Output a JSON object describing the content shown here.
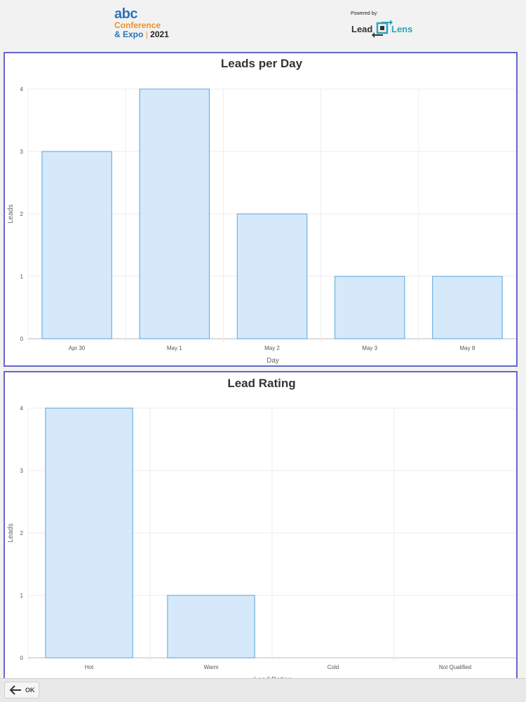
{
  "header": {
    "event_logo": {
      "abc": "abc",
      "line1": "Conference",
      "line2a": "& Expo",
      "line2sep": "|",
      "year": "2021"
    },
    "powered_by": "Powered by:",
    "brand": {
      "lead": "Lead",
      "lens": "Lens"
    }
  },
  "charts": [
    {
      "chart_data": {
        "type": "bar",
        "title": "Leads per Day",
        "xlabel": "Day",
        "ylabel": "Leads",
        "categories": [
          "Apr 30",
          "May 1",
          "May 2",
          "May 3",
          "May 8"
        ],
        "values": [
          3,
          4,
          2,
          1,
          1
        ],
        "ylim": [
          0,
          4
        ],
        "yticks": [
          "0",
          "1",
          "2",
          "3",
          "4"
        ],
        "grid": true
      }
    },
    {
      "chart_data": {
        "type": "bar",
        "title": "Lead Rating",
        "xlabel": "Lead Rating",
        "ylabel": "Leads",
        "categories": [
          "Hot",
          "Warm",
          "Cold",
          "Not Qualified"
        ],
        "values": [
          4,
          1,
          0,
          0
        ],
        "ylim": [
          0,
          4
        ],
        "yticks": [
          "0",
          "1",
          "2",
          "3",
          "4"
        ],
        "grid": true
      }
    }
  ],
  "colors": {
    "bar_fill": "#d6e9fa",
    "bar_stroke": "#6fb0e2",
    "grid": "#ececec",
    "panel_border": "#6666cc"
  },
  "footer": {
    "ok_label": "OK",
    "back_icon": "arrow-left-icon"
  }
}
